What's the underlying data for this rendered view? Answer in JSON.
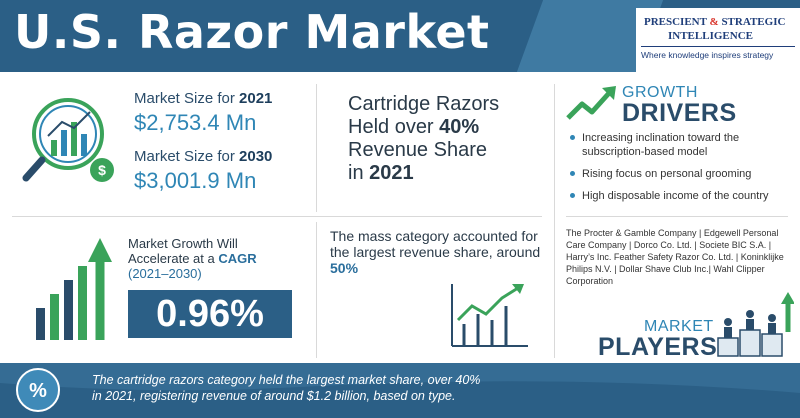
{
  "header": {
    "title": "U.S. Razor Market"
  },
  "logo": {
    "line1_a": "PRESCIENT ",
    "line1_amp": "&",
    "line1_b": " STRATEGIC",
    "line2": "INTELLIGENCE",
    "tagline": "Where knowledge inspires strategy"
  },
  "market_size": {
    "label_2021_prefix": "Market Size for ",
    "year_2021": "2021",
    "value_2021": "$2,753.4 Mn",
    "label_2030_prefix": "Market Size for ",
    "year_2030": "2030",
    "value_2030": "$3,001.9 Mn"
  },
  "cartridge": {
    "line1": "Cartridge Razors",
    "line2_a": "Held over ",
    "line2_b": "40%",
    "line3": "Revenue Share",
    "line4_a": "in ",
    "line4_b": "2021"
  },
  "growth_drivers": {
    "title_top": "GROWTH",
    "title_bottom": "DRIVERS",
    "items": [
      "Increasing inclination toward the subscription-based model",
      "Rising focus on personal grooming",
      "High disposable income of the country"
    ]
  },
  "market_growth": {
    "line1": "Market Growth Will",
    "line2_a": "Accelerate at a ",
    "line2_b": "CAGR",
    "line3": "(2021–2030)",
    "cagr_value": "0.96%"
  },
  "mass_category": {
    "text": "The mass category accounted for the largest revenue share, around ",
    "share": "50%"
  },
  "players": {
    "list": "The Procter & Gamble Company | Edgewell Personal Care Company | Dorco Co. Ltd. | Societe BIC S.A. | Harry’s Inc. Feather Safety Razor Co. Ltd. | Koninklijke Philips N.V. | Dollar Shave Club Inc.| Wahl Clipper Corporation",
    "title_top": "MARKET",
    "title_bottom": "PLAYERS"
  },
  "footer": {
    "line1": "The cartridge razors category held the largest market share, over 40%",
    "line2": "in 2021, registering revenue of around $1.2 billion, based on type."
  },
  "colors": {
    "primary": "#2b5f86",
    "accent": "#2f86b5",
    "green": "#3aa35a",
    "dark_text": "#2a4c6a"
  },
  "icons": [
    "magnifier-chart-icon",
    "growth-arrow-icon",
    "bar-chart-arrow-icon",
    "line-chart-icon",
    "people-podium-icon",
    "percent-icon"
  ]
}
